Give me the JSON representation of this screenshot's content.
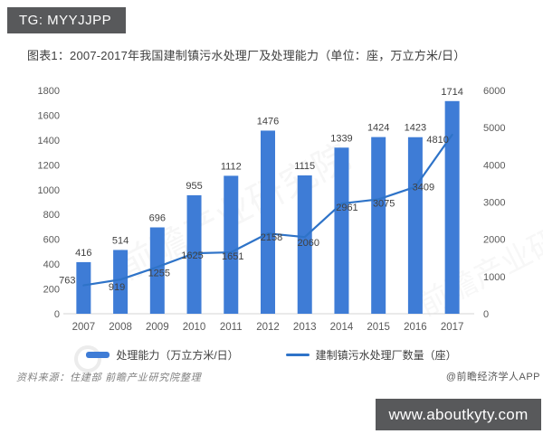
{
  "badge": {
    "text": "TG: MYYJJPP"
  },
  "title": "图表1：2007-2017年我国建制镇污水处理厂及处理能力（单位：座，万立方米/日）",
  "chart_data": {
    "type": "combo",
    "categories": [
      "2007",
      "2008",
      "2009",
      "2010",
      "2011",
      "2012",
      "2013",
      "2014",
      "2015",
      "2016",
      "2017"
    ],
    "series": [
      {
        "name": "处理能力（万立方米/日）",
        "type": "bar",
        "axis": "left",
        "color": "#3e7cd6",
        "values": [
          416,
          514,
          696,
          955,
          1112,
          1476,
          1115,
          1339,
          1424,
          1423,
          1714
        ]
      },
      {
        "name": "建制镇污水处理厂数量（座）",
        "type": "line",
        "axis": "right",
        "color": "#2e73c8",
        "values": [
          763,
          919,
          1255,
          1625,
          1651,
          2158,
          2060,
          2961,
          3075,
          3409,
          4810
        ]
      }
    ],
    "left_axis": {
      "min": 0,
      "max": 1800,
      "step": 200
    },
    "right_axis": {
      "min": 0,
      "max": 6000,
      "step": 1000
    },
    "grid": false,
    "legend_position": "bottom",
    "data_labels": true
  },
  "watermark": {
    "text": "前瞻产业研究院"
  },
  "footer": {
    "source": "资料来源：住建部 前瞻产业研究院整理",
    "credit": "@前瞻经济学人APP",
    "site": "www.aboutkyty.com"
  },
  "colors": {
    "bar": "#3e7cd6",
    "line": "#2e73c8",
    "axis_text": "#595959",
    "label_text": "#404040",
    "badge_bg": "#58595b",
    "site_bg": "#58595b"
  }
}
